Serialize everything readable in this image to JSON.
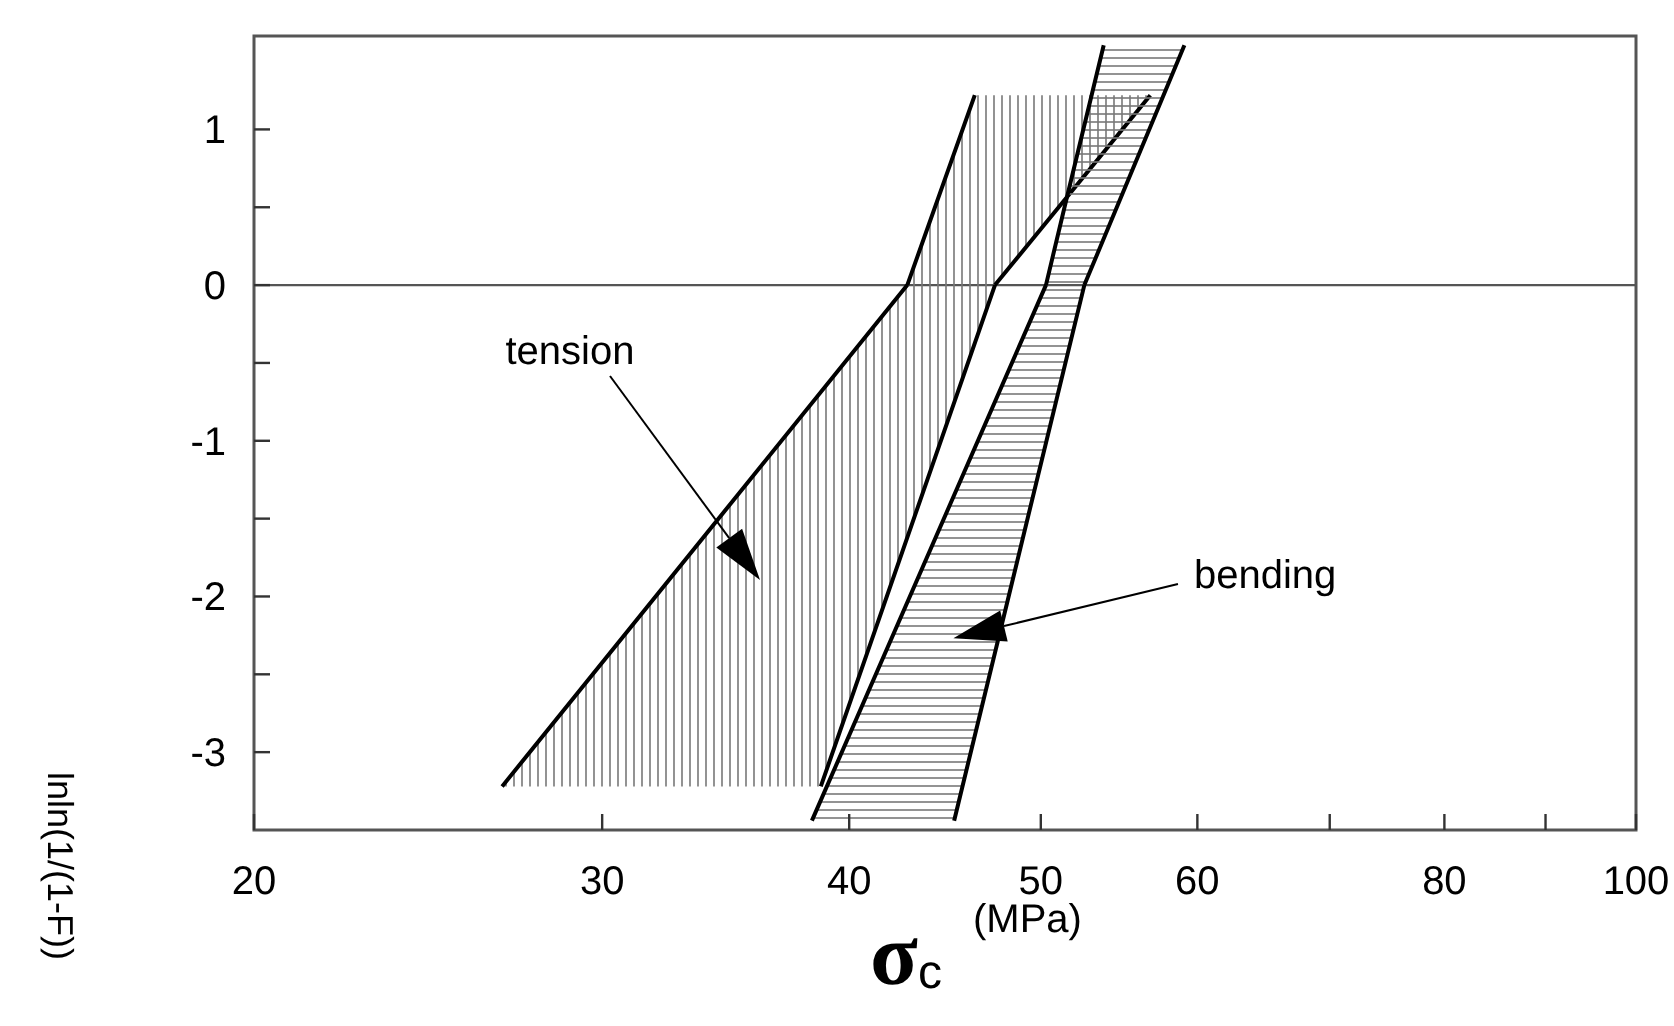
{
  "chart_data": {
    "type": "area",
    "xlabel": "σ$_{c}$ (MPa)",
    "ylabel": "lnln(1/(1-F))",
    "log": "x",
    "xlim": [
      20,
      100
    ],
    "xticks": [
      20,
      30,
      40,
      50,
      60,
      {
        "value": 70,
        "label": null
      },
      80,
      {
        "value": 90,
        "label": null
      },
      100
    ],
    "ylim": [
      -3.5,
      1.6
    ],
    "yticks": [
      -3,
      {
        "value": -2.5,
        "label": null
      },
      -2,
      {
        "value": -1.5,
        "label": null
      },
      -1,
      {
        "value": -0.5,
        "label": null
      },
      0,
      {
        "value": 0.5,
        "label": null
      },
      1
    ],
    "grid": false,
    "ref_lines": [
      {
        "axis": "y",
        "value": 0,
        "color": "#555555"
      }
    ],
    "series": [
      {
        "color": "#000000",
        "x": [
          26.7,
          42.8,
          46.3,
          56.8,
          47.4,
          38.7
        ],
        "values": [
          -3.22,
          0,
          1.22,
          1.22,
          0,
          -3.22
        ]
      },
      {
        "color": "#000000",
        "x": [
          38.3,
          50.3,
          51.4,
          53.8,
          59.1,
          52.6,
          45.2
        ],
        "values": [
          -3.44,
          0,
          0.5,
          1.54,
          1.54,
          0,
          -3.44
        ]
      }
    ],
    "annotations": [
      "tension",
      {
        "text": "bending",
        "x": 47.9,
        "y": -2.19
      }
    ]
  }
}
